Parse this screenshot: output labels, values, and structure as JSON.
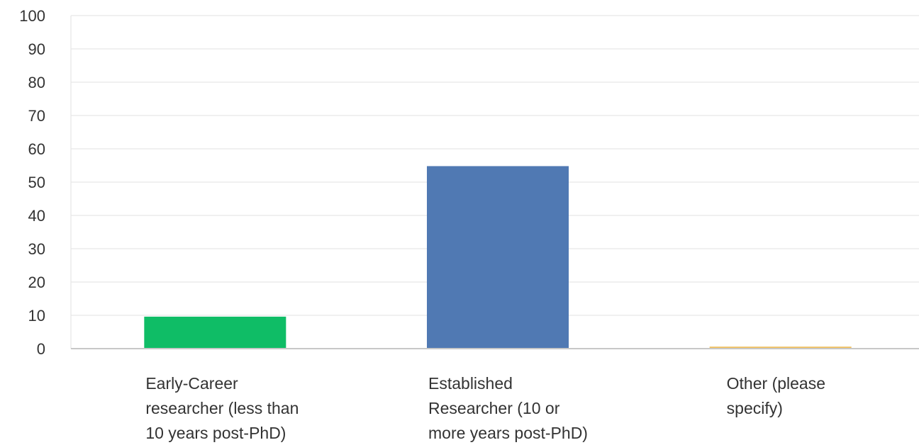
{
  "chart_data": {
    "type": "bar",
    "title": "",
    "xlabel": "",
    "ylabel": "",
    "ylim": [
      0,
      100
    ],
    "yticks": [
      0,
      10,
      20,
      30,
      40,
      50,
      60,
      70,
      80,
      90,
      100
    ],
    "grid": true,
    "legend": "none",
    "categories": [
      [
        "Early-Career",
        "researcher (less than",
        "10 years post-PhD)"
      ],
      [
        "Established",
        "Researcher (10 or",
        "more years post-PhD)"
      ],
      [
        "Other (please",
        "specify)"
      ]
    ],
    "values": [
      9.6,
      54.8,
      0.6
    ],
    "colors": [
      "#0fbd66",
      "#5079b3",
      "#f0c060"
    ]
  }
}
